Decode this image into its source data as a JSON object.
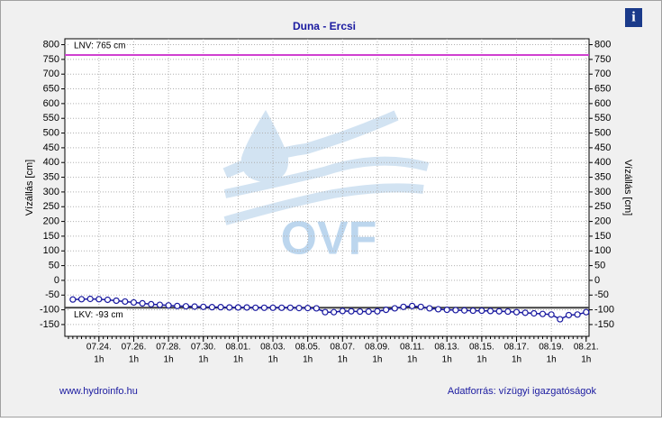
{
  "chart_data": {
    "type": "line",
    "title": "Duna - Ercsi",
    "ylabel": "Vízállás [cm]",
    "y2label": "Vízállás [cm]",
    "watermark": "OVF",
    "ylim": [
      -190,
      820
    ],
    "yticks": [
      -150,
      -100,
      -50,
      0,
      50,
      100,
      150,
      200,
      250,
      300,
      350,
      400,
      450,
      500,
      550,
      600,
      650,
      700,
      750,
      800
    ],
    "xlim": [
      "07.22. 2h",
      "08.21. 5h"
    ],
    "xticks": [
      {
        "value": "07.24. 1h",
        "label": "07.24.",
        "sublabel": "1h"
      },
      {
        "value": "07.26. 1h",
        "label": "07.26.",
        "sublabel": "1h"
      },
      {
        "value": "07.28. 1h",
        "label": "07.28.",
        "sublabel": "1h"
      },
      {
        "value": "07.30. 1h",
        "label": "07.30.",
        "sublabel": "1h"
      },
      {
        "value": "08.01. 1h",
        "label": "08.01.",
        "sublabel": "1h"
      },
      {
        "value": "08.03. 1h",
        "label": "08.03.",
        "sublabel": "1h"
      },
      {
        "value": "08.05. 1h",
        "label": "08.05.",
        "sublabel": "1h"
      },
      {
        "value": "08.07. 1h",
        "label": "08.07.",
        "sublabel": "1h"
      },
      {
        "value": "08.09. 1h",
        "label": "08.09.",
        "sublabel": "1h"
      },
      {
        "value": "08.11. 1h",
        "label": "08.11.",
        "sublabel": "1h"
      },
      {
        "value": "08.13. 1h",
        "label": "08.13.",
        "sublabel": "1h"
      },
      {
        "value": "08.15. 1h",
        "label": "08.15.",
        "sublabel": "1h"
      },
      {
        "value": "08.17. 1h",
        "label": "08.17.",
        "sublabel": "1h"
      },
      {
        "value": "08.19. 1h",
        "label": "08.19.",
        "sublabel": "1h"
      },
      {
        "value": "08.21. 1h",
        "label": "08.21.",
        "sublabel": "1h"
      }
    ],
    "grid": true,
    "x": [
      "07.22. 13h",
      "07.23. 1h",
      "07.23. 13h",
      "07.24. 1h",
      "07.24. 13h",
      "07.25. 1h",
      "07.25. 13h",
      "07.26. 1h",
      "07.26. 13h",
      "07.27. 1h",
      "07.27. 13h",
      "07.28. 1h",
      "07.28. 13h",
      "07.29. 1h",
      "07.29. 13h",
      "07.30. 1h",
      "07.30. 13h",
      "07.31. 1h",
      "07.31. 13h",
      "08.01. 1h",
      "08.01. 13h",
      "08.02. 1h",
      "08.02. 13h",
      "08.03. 1h",
      "08.03. 13h",
      "08.04. 1h",
      "08.04. 13h",
      "08.05. 1h",
      "08.05. 13h",
      "08.06. 1h",
      "08.06. 13h",
      "08.07. 1h",
      "08.07. 13h",
      "08.08. 1h",
      "08.08. 13h",
      "08.09. 1h",
      "08.09. 13h",
      "08.10. 1h",
      "08.10. 13h",
      "08.11. 1h",
      "08.11. 13h",
      "08.12. 1h",
      "08.12. 13h",
      "08.13. 1h",
      "08.13. 13h",
      "08.14. 1h",
      "08.14. 13h",
      "08.15. 1h",
      "08.15. 13h",
      "08.16. 1h",
      "08.16. 13h",
      "08.17. 1h",
      "08.17. 13h",
      "08.18. 1h",
      "08.18. 13h",
      "08.19. 1h",
      "08.19. 13h",
      "08.20. 1h",
      "08.20. 13h",
      "08.21. 1h"
    ],
    "series": [
      {
        "name": "Vízállás",
        "color": "#1a1aa0",
        "values": [
          -65,
          -64,
          -63,
          -64,
          -66,
          -69,
          -72,
          -75,
          -78,
          -81,
          -83,
          -85,
          -87,
          -88,
          -89,
          -90,
          -91,
          -91,
          -92,
          -92,
          -92,
          -93,
          -93,
          -93,
          -93,
          -93,
          -94,
          -94,
          -95,
          -108,
          -108,
          -104,
          -105,
          -106,
          -106,
          -105,
          -100,
          -95,
          -90,
          -87,
          -90,
          -95,
          -98,
          -100,
          -101,
          -102,
          -103,
          -103,
          -104,
          -105,
          -106,
          -108,
          -110,
          -112,
          -114,
          -116,
          -132,
          -118,
          -116,
          -108
        ]
      }
    ],
    "reference_lines": [
      {
        "label": "LNV: 765 cm",
        "value": 765,
        "color": "#d040d0"
      },
      {
        "label": "LKV: -93 cm",
        "value": -93,
        "color": "#404040"
      }
    ],
    "footer_left": "www.hydroinfo.hu",
    "footer_right": "Adatforrás: vízügyi igazgatóságok"
  }
}
